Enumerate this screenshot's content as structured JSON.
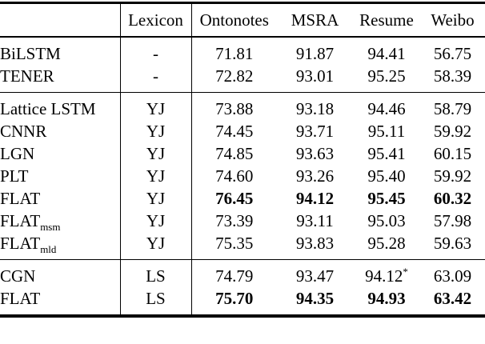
{
  "table": {
    "columns": [
      {
        "key": "model",
        "label": ""
      },
      {
        "key": "lexicon",
        "label": "Lexicon"
      },
      {
        "key": "ontonotes",
        "label": "Ontonotes"
      },
      {
        "key": "msra",
        "label": "MSRA"
      },
      {
        "key": "resume",
        "label": "Resume"
      },
      {
        "key": "weibo",
        "label": "Weibo"
      }
    ],
    "sections": [
      {
        "rows": [
          {
            "model": {
              "base": "BiLSTM"
            },
            "lexicon": "-",
            "scores": [
              "71.81",
              "91.87",
              "94.41",
              "56.75"
            ],
            "bold": false
          },
          {
            "model": {
              "base": "TENER"
            },
            "lexicon": "-",
            "scores": [
              "72.82",
              "93.01",
              "95.25",
              "58.39"
            ],
            "bold": false
          }
        ]
      },
      {
        "rows": [
          {
            "model": {
              "base": "Lattice LSTM"
            },
            "lexicon": "YJ",
            "scores": [
              "73.88",
              "93.18",
              "94.46",
              "58.79"
            ],
            "bold": false
          },
          {
            "model": {
              "base": "CNNR"
            },
            "lexicon": "YJ",
            "scores": [
              "74.45",
              "93.71",
              "95.11",
              "59.92"
            ],
            "bold": false
          },
          {
            "model": {
              "base": "LGN"
            },
            "lexicon": "YJ",
            "scores": [
              "74.85",
              "93.63",
              "95.41",
              "60.15"
            ],
            "bold": false
          },
          {
            "model": {
              "base": "PLT"
            },
            "lexicon": "YJ",
            "scores": [
              "74.60",
              "93.26",
              "95.40",
              "59.92"
            ],
            "bold": false
          },
          {
            "model": {
              "base": "FLAT"
            },
            "lexicon": "YJ",
            "scores": [
              "76.45",
              "94.12",
              "95.45",
              "60.32"
            ],
            "bold": true
          },
          {
            "model": {
              "base": "FLAT",
              "sub": "msm"
            },
            "lexicon": "YJ",
            "scores": [
              "73.39",
              "93.11",
              "95.03",
              "57.98"
            ],
            "bold": false
          },
          {
            "model": {
              "base": "FLAT",
              "sub": "mld"
            },
            "lexicon": "YJ",
            "scores": [
              "75.35",
              "93.83",
              "95.28",
              "59.63"
            ],
            "bold": false
          }
        ]
      },
      {
        "rows": [
          {
            "model": {
              "base": "CGN"
            },
            "lexicon": "LS",
            "scores": [
              "74.79",
              "93.47",
              {
                "v": "94.12",
                "sup": "*"
              },
              "63.09"
            ],
            "bold": false
          },
          {
            "model": {
              "base": "FLAT"
            },
            "lexicon": "LS",
            "scores": [
              "75.70",
              "94.35",
              "94.93",
              "63.42"
            ],
            "bold": true
          }
        ]
      }
    ]
  }
}
